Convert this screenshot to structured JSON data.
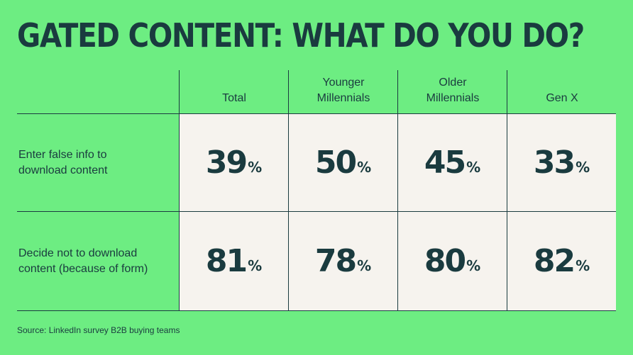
{
  "title": "GATED CONTENT: WHAT DO YOU DO?",
  "source": "Source: LinkedIn survey B2B buying teams",
  "colors": {
    "background": "#6ded82",
    "cell": "#f6f3ee",
    "text": "#1a3b3f"
  },
  "chart_data": {
    "type": "table",
    "title": "GATED CONTENT: WHAT DO YOU DO?",
    "columns": [
      "Total",
      "Younger\nMillennials",
      "Older\nMillennials",
      "Gen X"
    ],
    "rows": [
      {
        "label": "Enter false info to download content",
        "values": [
          "39",
          "50",
          "45",
          "33"
        ],
        "unit": "%"
      },
      {
        "label": "Decide not to download content (because of form)",
        "values": [
          "81",
          "78",
          "80",
          "82"
        ],
        "unit": "%"
      }
    ]
  }
}
